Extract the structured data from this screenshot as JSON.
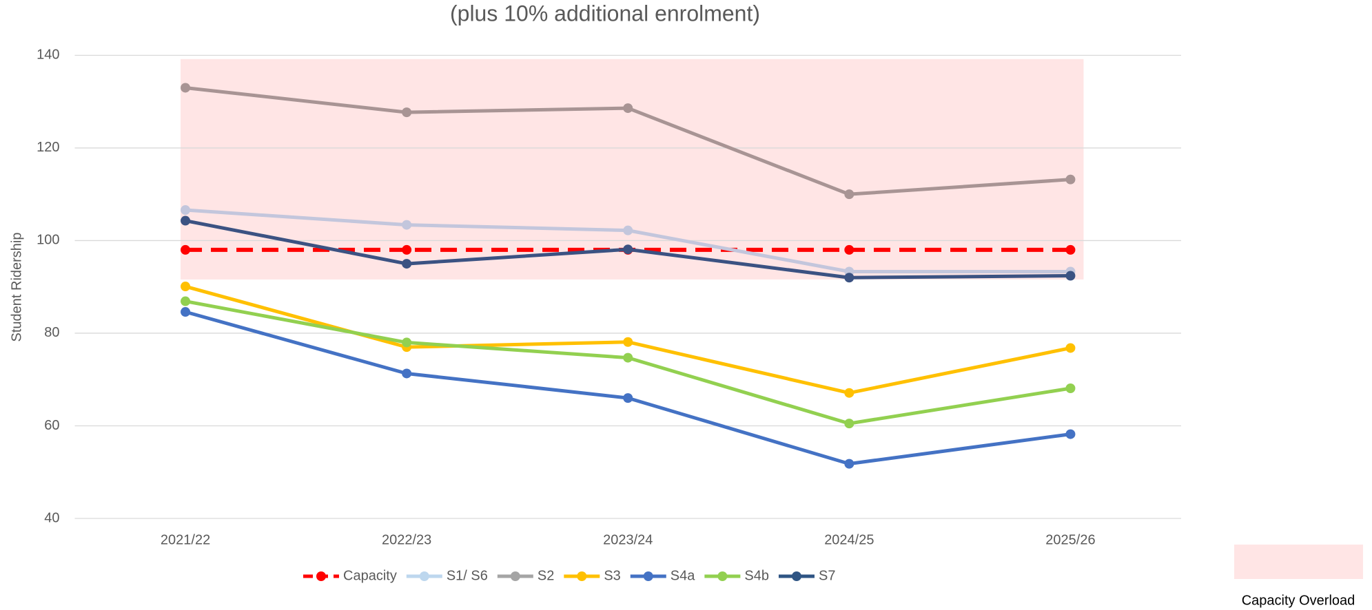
{
  "chart_data": {
    "type": "line",
    "title": "(plus 10% additional enrolment)",
    "y_label": "Student Ridership",
    "categories": [
      "2021/22",
      "2022/23",
      "2023/24",
      "2024/25",
      "2025/26"
    ],
    "series": [
      {
        "name": "Capacity",
        "color": "#ff0000",
        "dash": true,
        "values": [
          98,
          98,
          98,
          98,
          98
        ]
      },
      {
        "name": "S1/ S6",
        "color": "#c3c6dc",
        "legend_color": "#bdd7ee",
        "values": [
          106.6,
          103.4,
          102.2,
          93.3,
          93.3
        ]
      },
      {
        "name": "S2",
        "color": "#a89494",
        "legend_color": "#a5a5a5",
        "values": [
          133,
          127.7,
          128.6,
          110,
          113.2
        ]
      },
      {
        "name": "S3",
        "color": "#ffc000",
        "values": [
          90.1,
          77,
          78.1,
          67.1,
          76.8
        ]
      },
      {
        "name": "S4a",
        "color": "#4472c4",
        "values": [
          84.6,
          71.3,
          66,
          51.8,
          58.2
        ]
      },
      {
        "name": "S4b",
        "color": "#92d050",
        "values": [
          86.9,
          78,
          74.7,
          60.5,
          68.1
        ]
      },
      {
        "name": "S7",
        "color": "#3b5282",
        "legend_color": "#2f5584",
        "values": [
          104.3,
          95,
          98.1,
          92,
          92.4
        ]
      }
    ],
    "band": {
      "name": "Capacity Overload",
      "color": "#ffe5e5",
      "range": [
        91.6,
        139.2
      ]
    },
    "ylim": [
      40,
      140
    ],
    "yticks": [
      40,
      60,
      80,
      100,
      120,
      140
    ],
    "grid": true
  }
}
